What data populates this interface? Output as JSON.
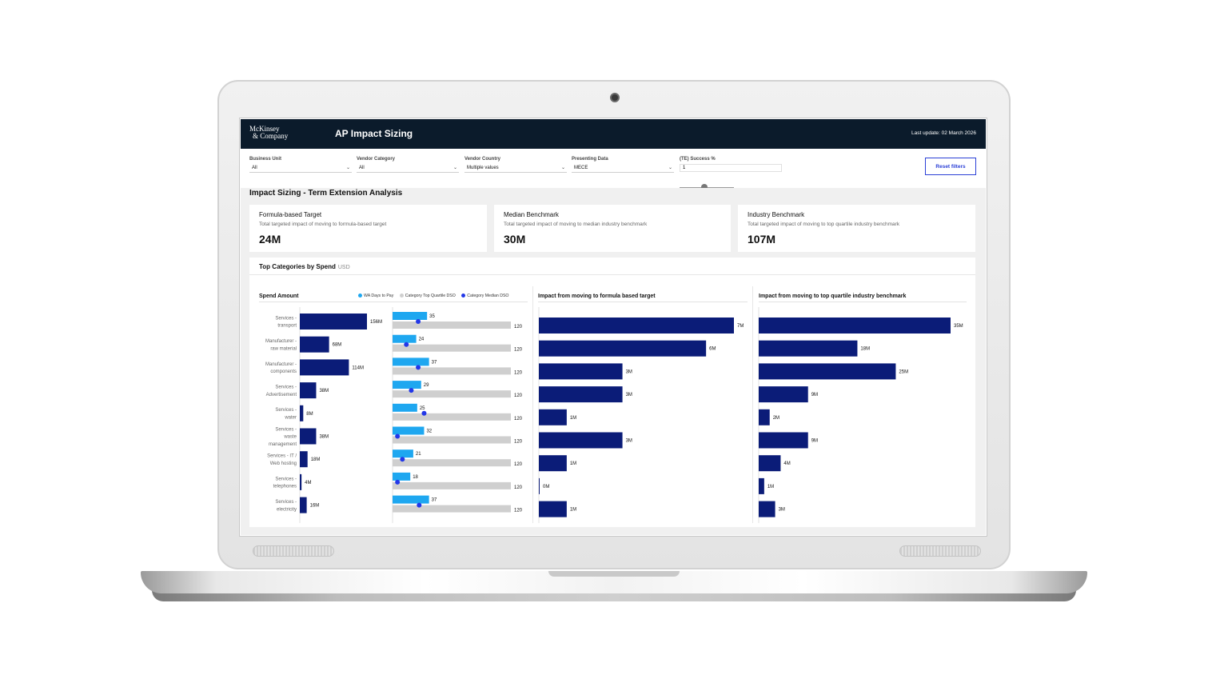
{
  "header": {
    "logo_line1": "McKinsey",
    "logo_line2": "& Company",
    "title": "AP Impact Sizing",
    "last_update": "Last update: 02 March 2026"
  },
  "filters": [
    {
      "label": "Business Unit",
      "value": "All"
    },
    {
      "label": "Vendor Category",
      "value": "All"
    },
    {
      "label": "Vendor Country",
      "value": "Multiple values"
    },
    {
      "label": "Presenting Data",
      "value": "MECE"
    }
  ],
  "success_filter": {
    "label": "(TE) Success %",
    "value": "1",
    "slider_level": 0.45
  },
  "reset_label": "Reset filters",
  "section_title": "Impact Sizing - Term Extension Analysis",
  "kpis": [
    {
      "title": "Formula-based Target",
      "desc": "Total targeted impact of moving to formula-based target",
      "value": "24M"
    },
    {
      "title": "Median Benchmark",
      "desc": "Total targeted impact of moving to median industry benchmark",
      "value": "30M"
    },
    {
      "title": "Industry Benchmark",
      "desc": "Total targeted impact of moving to top quartile industry benchmark",
      "value": "107M"
    }
  ],
  "charts_title": "Top Categories by Spend",
  "charts_unit": "USD",
  "legend": [
    {
      "label": "WA Days to Pay",
      "color": "#1ea7f0"
    },
    {
      "label": "Category Top Quartile DSO",
      "color": "#cfcfcf"
    },
    {
      "label": "Category Median DSO",
      "color": "#2338e8"
    }
  ],
  "chart_data": [
    {
      "type": "bar",
      "title": "Spend Amount",
      "categories": [
        [
          "Services -",
          "transport"
        ],
        [
          "Manufacturer -",
          "raw material"
        ],
        [
          "Manufacturer -",
          "components"
        ],
        [
          "Services -",
          "Advertisement"
        ],
        [
          "Services -",
          "water"
        ],
        [
          "Services -",
          "waste",
          "management"
        ],
        [
          "Services - IT /",
          "Web hosting"
        ],
        [
          "Services -",
          "telephones"
        ],
        [
          "Services -",
          "electricity"
        ]
      ],
      "values": [
        156,
        68,
        114,
        38,
        8,
        38,
        18,
        4,
        16
      ],
      "labels": [
        "156M",
        "68M",
        "114M",
        "38M",
        "8M",
        "38M",
        "18M",
        "4M",
        "16M"
      ],
      "bar_color": "#0b1c78",
      "orientation": "horizontal"
    },
    {
      "type": "bar",
      "title": "",
      "series": [
        {
          "name": "WA Days to Pay",
          "values": [
            35,
            24,
            37,
            29,
            25,
            32,
            21,
            18,
            37
          ],
          "color": "#1ea7f0"
        },
        {
          "name": "Category Top Quartile DSO",
          "values": [
            120,
            120,
            120,
            120,
            120,
            120,
            120,
            120,
            120
          ],
          "color": "#cfcfcf"
        },
        {
          "name": "Category Median DSO",
          "values": [
            26,
            14,
            26,
            19,
            32,
            5,
            10,
            5,
            27
          ],
          "color": "#2338e8"
        }
      ],
      "orientation": "horizontal",
      "xlim": [
        0,
        120
      ]
    },
    {
      "type": "bar",
      "title": "Impact from moving to formula based target",
      "values": [
        7,
        6,
        3,
        3,
        1,
        3,
        1,
        0,
        1
      ],
      "labels": [
        "7M",
        "6M",
        "3M",
        "3M",
        "1M",
        "3M",
        "1M",
        "0M",
        "1M"
      ],
      "bar_color": "#0b1c78",
      "orientation": "horizontal"
    },
    {
      "type": "bar",
      "title": "Impact from moving to top quartile industry benchmark",
      "values": [
        35,
        18,
        25,
        9,
        2,
        9,
        4,
        1,
        3
      ],
      "labels": [
        "35M",
        "18M",
        "25M",
        "9M",
        "2M",
        "9M",
        "4M",
        "1M",
        "3M"
      ],
      "bar_color": "#0b1c78",
      "orientation": "horizontal"
    }
  ]
}
